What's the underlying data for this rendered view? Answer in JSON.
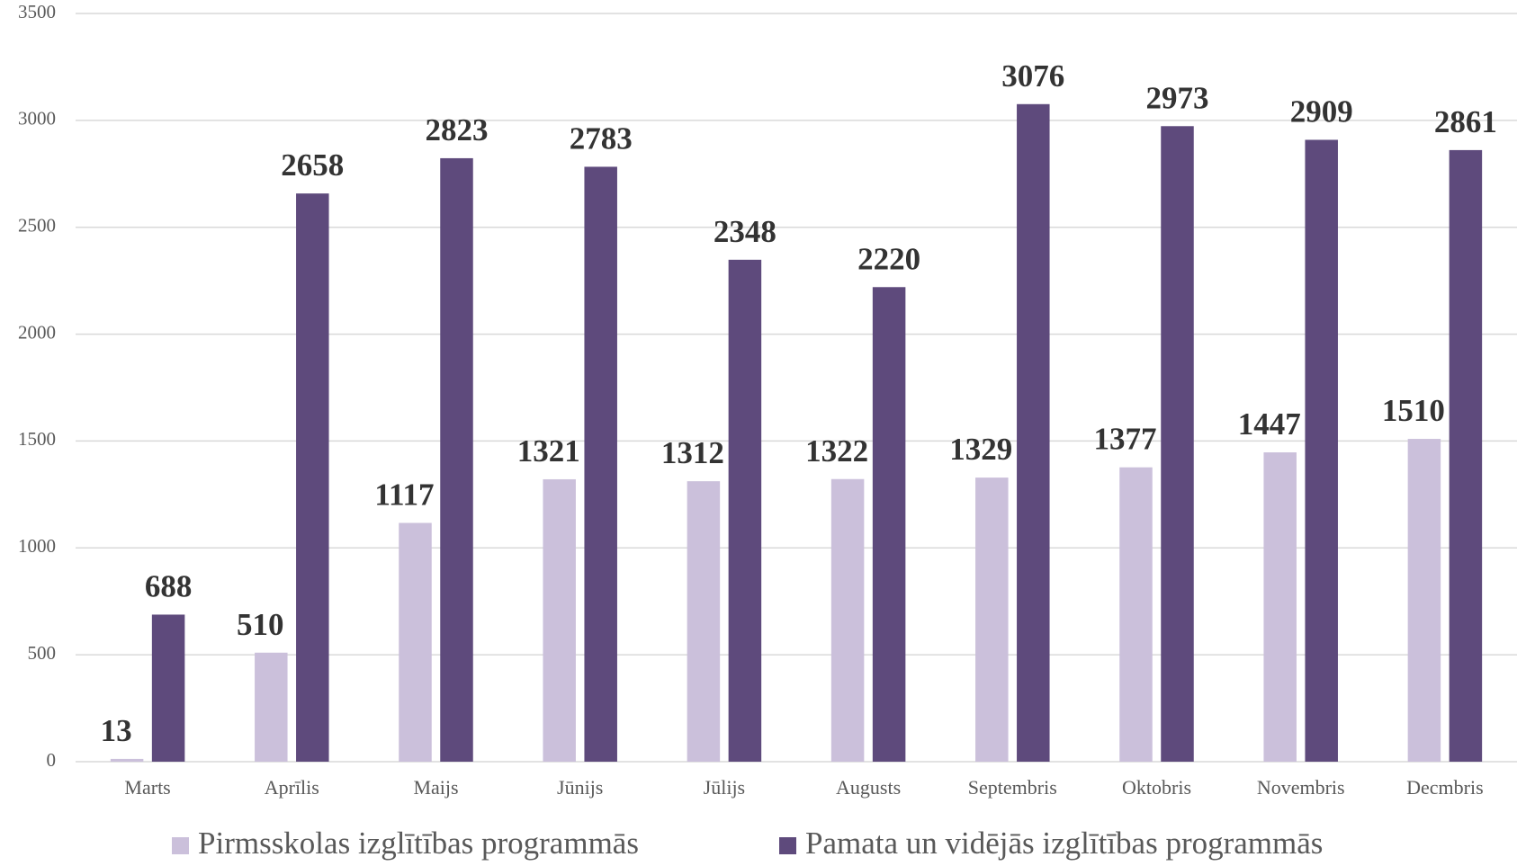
{
  "chart_data": {
    "type": "bar",
    "categories": [
      "Marts",
      "Aprīlis",
      "Maijs",
      "Jūnijs",
      "Jūlijs",
      "Augusts",
      "Septembris",
      "Oktobris",
      "Novembris",
      "Decmbris"
    ],
    "series": [
      {
        "name": "Pirmsskolas izglītības programmās",
        "color": "#cbc0db",
        "values": [
          13,
          510,
          1117,
          1321,
          1312,
          1322,
          1329,
          1377,
          1447,
          1510
        ]
      },
      {
        "name": "Pamata un vidējās izglītības programmās",
        "color": "#5e4a7c",
        "values": [
          688,
          2658,
          2823,
          2783,
          2348,
          2220,
          3076,
          2973,
          2909,
          2861
        ]
      }
    ],
    "ylim": [
      0,
      3500
    ],
    "yticks": [
      0,
      500,
      1000,
      1500,
      2000,
      2500,
      3000,
      3500
    ],
    "grid": true
  }
}
